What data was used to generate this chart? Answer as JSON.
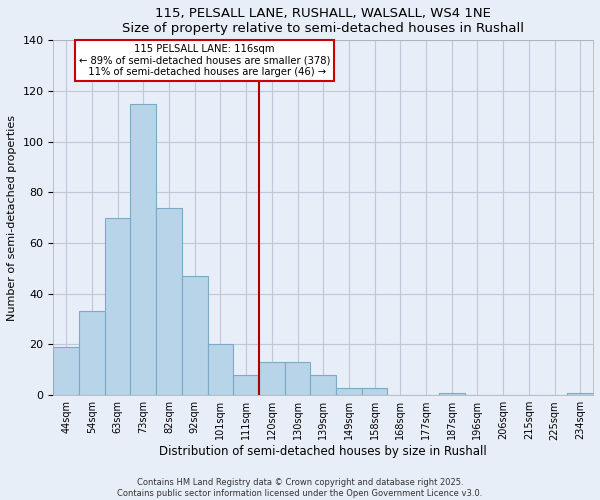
{
  "title": "115, PELSALL LANE, RUSHALL, WALSALL, WS4 1NE",
  "subtitle": "Size of property relative to semi-detached houses in Rushall",
  "xlabel": "Distribution of semi-detached houses by size in Rushall",
  "ylabel": "Number of semi-detached properties",
  "bar_labels": [
    "44sqm",
    "54sqm",
    "63sqm",
    "73sqm",
    "82sqm",
    "92sqm",
    "101sqm",
    "111sqm",
    "120sqm",
    "130sqm",
    "139sqm",
    "149sqm",
    "158sqm",
    "168sqm",
    "177sqm",
    "187sqm",
    "196sqm",
    "206sqm",
    "215sqm",
    "225sqm",
    "234sqm"
  ],
  "bar_values": [
    19,
    33,
    70,
    115,
    74,
    47,
    20,
    8,
    13,
    13,
    8,
    3,
    3,
    0,
    0,
    1,
    0,
    0,
    0,
    0,
    1
  ],
  "bar_color": "#b8d4e8",
  "bar_edge_color": "#7aaac8",
  "ylim": [
    0,
    140
  ],
  "yticks": [
    0,
    20,
    40,
    60,
    80,
    100,
    120,
    140
  ],
  "vline_x": 7.5,
  "vline_color": "#aa0000",
  "annotation_title": "115 PELSALL LANE: 116sqm",
  "annotation_line1": "← 89% of semi-detached houses are smaller (378)",
  "annotation_line2": "  11% of semi-detached houses are larger (46) →",
  "footer_line1": "Contains HM Land Registry data © Crown copyright and database right 2025.",
  "footer_line2": "Contains public sector information licensed under the Open Government Licence v3.0.",
  "bg_color": "#e8eef8",
  "plot_bg_color": "#e8eef8",
  "grid_color": "#c0c8d8"
}
